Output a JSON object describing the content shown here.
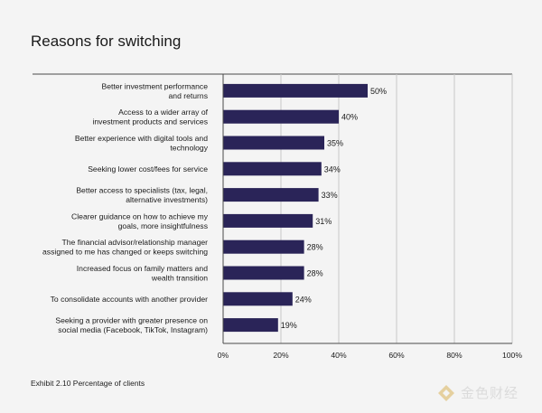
{
  "title": "Reasons for switching",
  "footnote": "Exhibit 2.10 Percentage of clients",
  "watermark": {
    "text": "金色财经",
    "icon": "gold-logo-icon"
  },
  "colors": {
    "bar": "#2a2458",
    "axis": "#4a4a4a",
    "grid": "#c8c8c8",
    "background": "#f4f4f4"
  },
  "chart_data": {
    "type": "bar",
    "orientation": "horizontal",
    "categories": [
      [
        "Better investment performance",
        "and returns"
      ],
      [
        "Access to a wider array of",
        "investment products and services"
      ],
      [
        "Better experience with digital tools and",
        "technology"
      ],
      [
        "Seeking lower cost/fees for service"
      ],
      [
        "Better access to specialists (tax, legal,",
        "alternative investments)"
      ],
      [
        "Clearer guidance on how to achieve my",
        "goals, more insightfulness"
      ],
      [
        "The financial advisor/relationship manager",
        "assigned to me has changed or keeps switching"
      ],
      [
        "Increased focus on family matters and",
        "wealth transition"
      ],
      [
        "To consolidate accounts with another provider"
      ],
      [
        "Seeking a provider with greater presence on",
        "social media (Facebook, TikTok, Instagram)"
      ]
    ],
    "values": [
      50,
      40,
      35,
      34,
      33,
      31,
      28,
      28,
      24,
      19
    ],
    "value_labels": [
      "50%",
      "40%",
      "35%",
      "34%",
      "33%",
      "31%",
      "28%",
      "28%",
      "24%",
      "19%"
    ],
    "xlim": [
      0,
      100
    ],
    "xticks": [
      0,
      20,
      40,
      60,
      80,
      100
    ],
    "xtick_labels": [
      "0%",
      "20%",
      "40%",
      "60%",
      "80%",
      "100%"
    ],
    "grid": true
  }
}
